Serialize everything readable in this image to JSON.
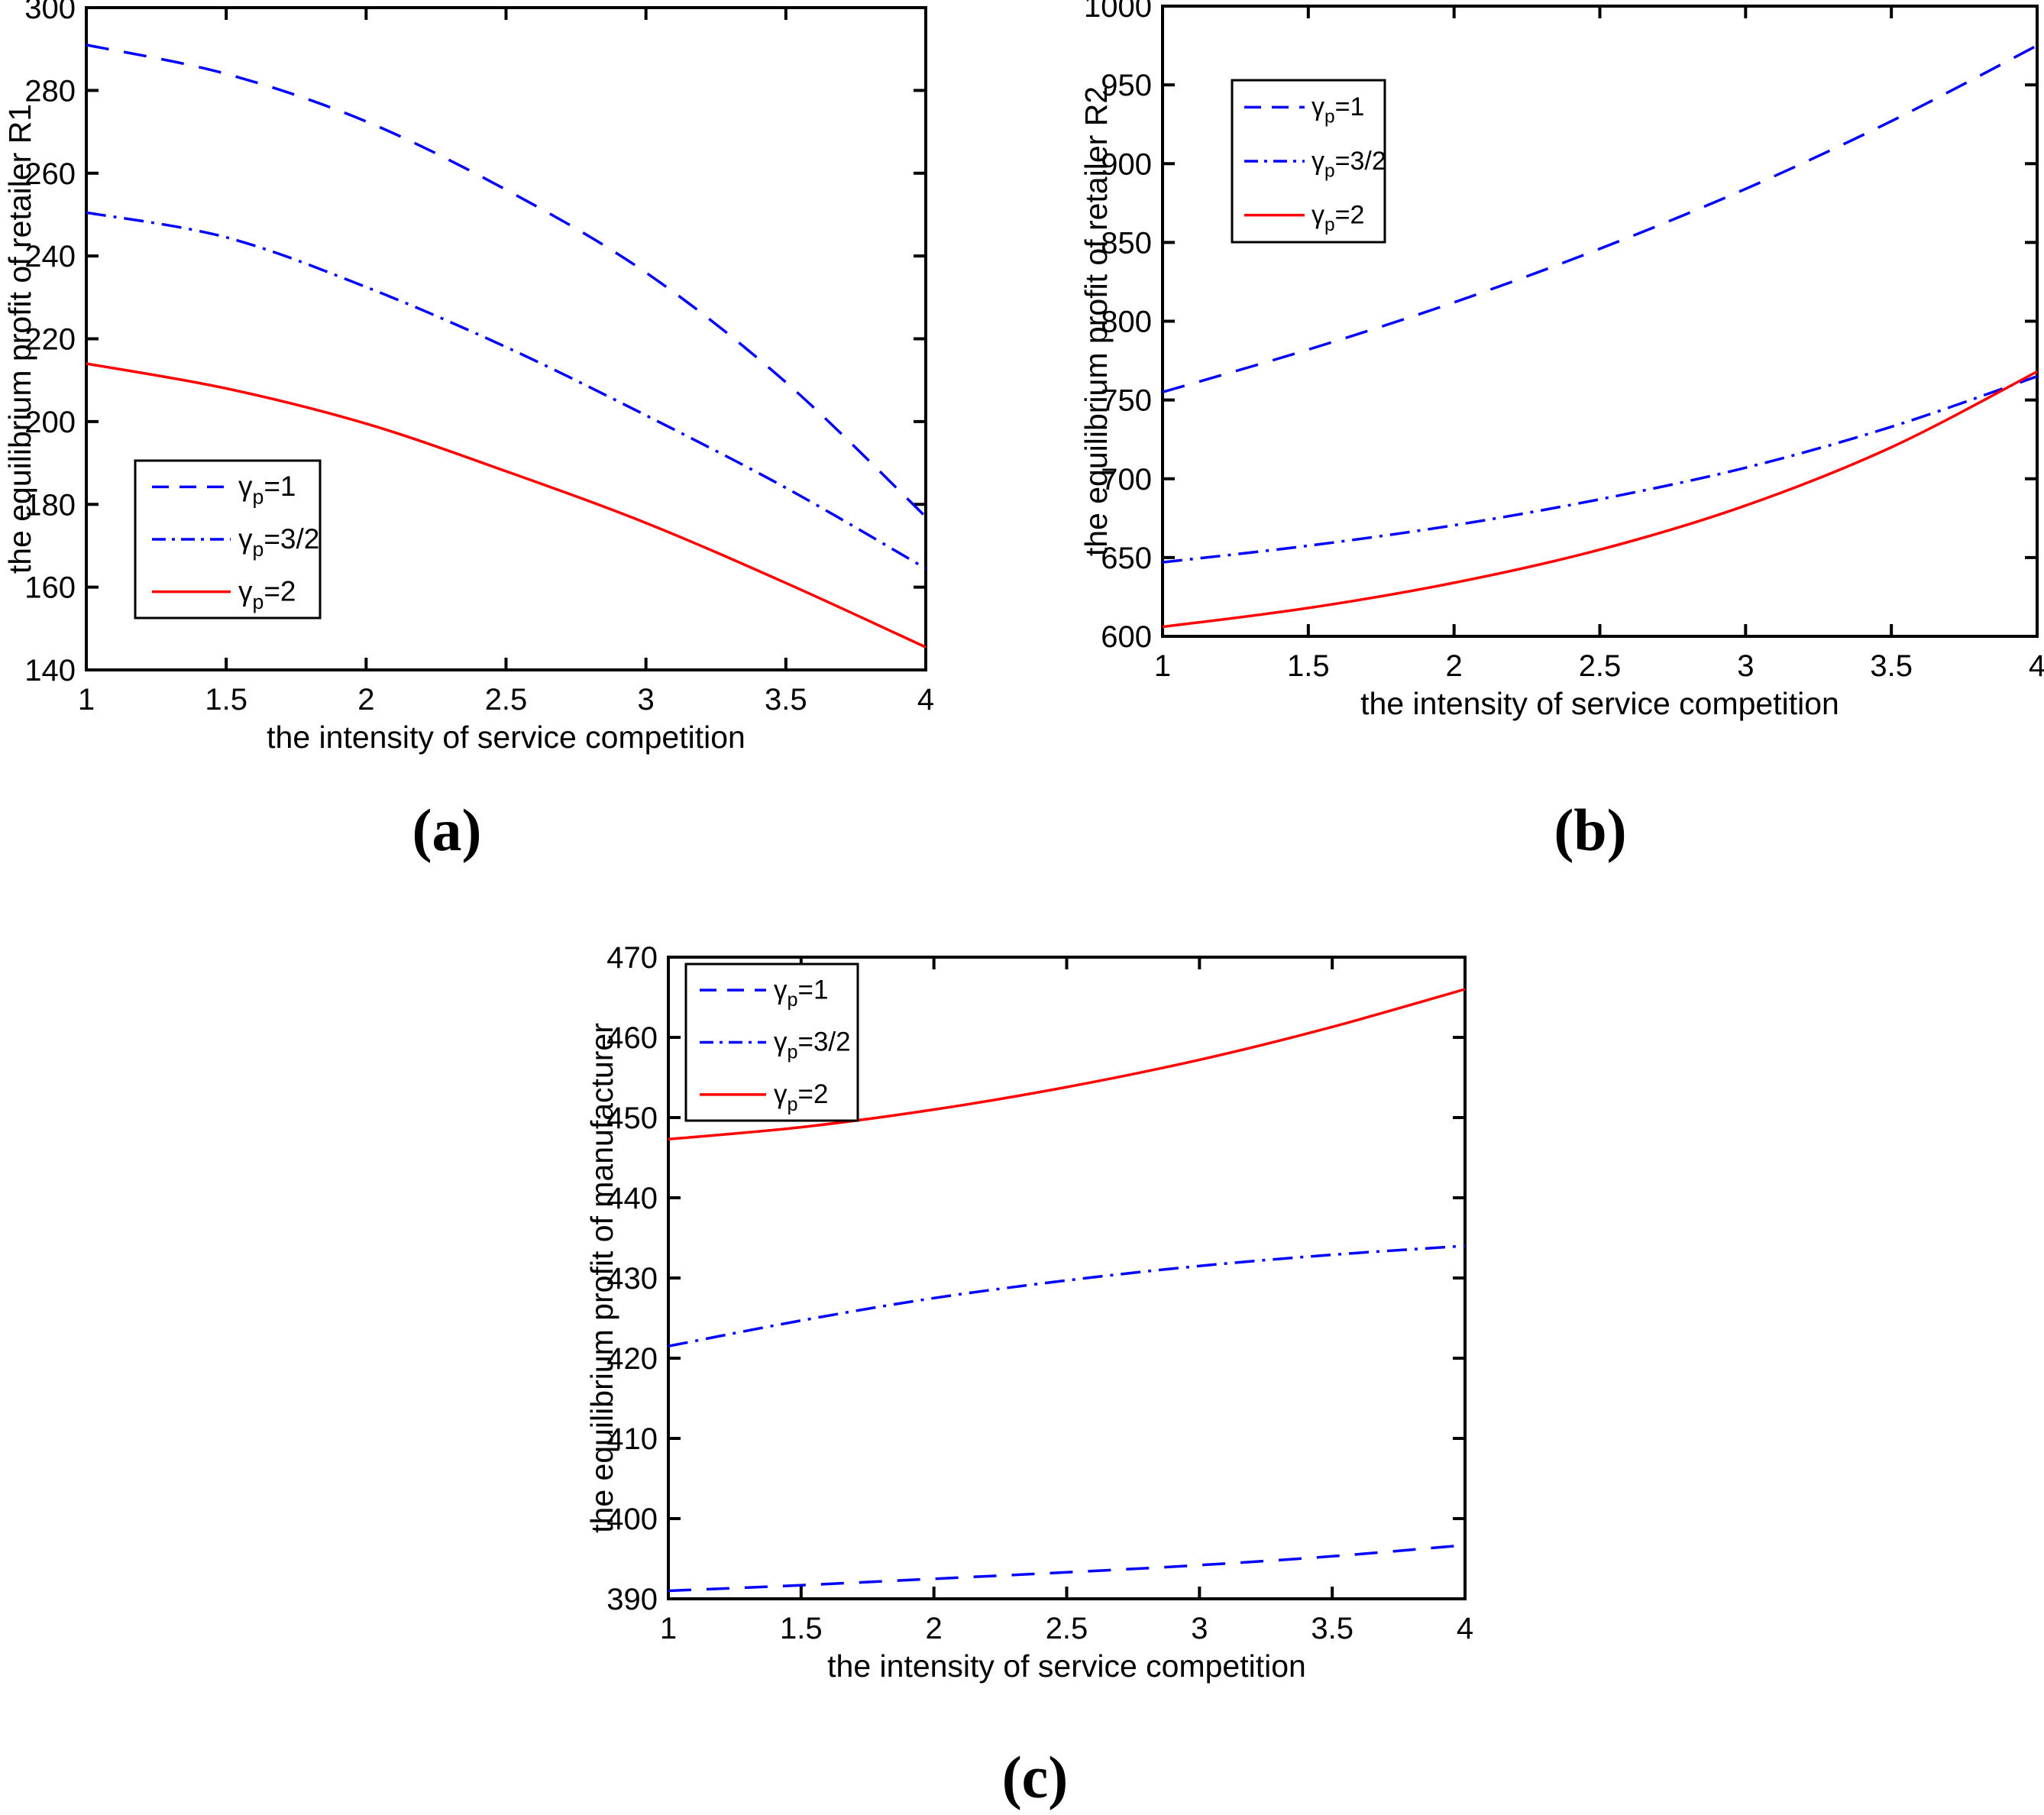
{
  "figure": {
    "background": "#ffffff",
    "accent_blue": "#0000ff",
    "accent_red": "#ff0000",
    "axis_color": "#000000"
  },
  "chart_data": [
    {
      "type": "line",
      "panel": "a",
      "caption": "(a)",
      "title": "",
      "xlabel": "the intensity of service competition",
      "ylabel": "the equilibrium profit of retailer R1",
      "xlim": [
        1,
        4
      ],
      "ylim": [
        140,
        300
      ],
      "xticks": [
        1,
        1.5,
        2,
        2.5,
        3,
        3.5,
        4
      ],
      "yticks": [
        140,
        160,
        180,
        200,
        220,
        240,
        260,
        280,
        300
      ],
      "grid": false,
      "legend_position": "lower-left-inside",
      "x": [
        1,
        1.5,
        2,
        2.5,
        3,
        3.5,
        4
      ],
      "series": [
        {
          "name": "gamma_p=1",
          "legend": {
            "base": "γ",
            "sub": "p",
            "rest": "=1"
          },
          "style": "dashed",
          "color": "#0000ff",
          "values": [
            291,
            284,
            272.5,
            256,
            236,
            209.5,
            177
          ]
        },
        {
          "name": "gamma_p=3/2",
          "legend": {
            "base": "γ",
            "sub": "p",
            "rest": "=3/2"
          },
          "style": "dashdot",
          "color": "#0000ff",
          "values": [
            250.5,
            244.5,
            232.5,
            218,
            201.5,
            184,
            164.5
          ]
        },
        {
          "name": "gamma_p=2",
          "legend": {
            "base": "γ",
            "sub": "p",
            "rest": "=2"
          },
          "style": "solid",
          "color": "#ff0000",
          "values": [
            214,
            208,
            199.5,
            188,
            175.5,
            161,
            145.5
          ]
        }
      ]
    },
    {
      "type": "line",
      "panel": "b",
      "caption": "(b)",
      "title": "",
      "xlabel": "the intensity of service competition",
      "ylabel": "the equilibrium profit of retailer R2",
      "xlim": [
        1,
        4
      ],
      "ylim": [
        600,
        1000
      ],
      "xticks": [
        1,
        1.5,
        2,
        2.5,
        3,
        3.5,
        4
      ],
      "yticks": [
        600,
        650,
        700,
        750,
        800,
        850,
        900,
        950,
        1000
      ],
      "grid": false,
      "legend_position": "upper-left-inside",
      "x": [
        1,
        1.5,
        2,
        2.5,
        3,
        3.5,
        4
      ],
      "series": [
        {
          "name": "gamma_p=1",
          "legend": {
            "base": "γ",
            "sub": "p",
            "rest": "=1"
          },
          "style": "dashed",
          "color": "#0000ff",
          "values": [
            755,
            782,
            812,
            846,
            884,
            927,
            975
          ]
        },
        {
          "name": "gamma_p=3/2",
          "legend": {
            "base": "γ",
            "sub": "p",
            "rest": "=3/2"
          },
          "style": "dashdot",
          "color": "#0000ff",
          "values": [
            647,
            657.5,
            670.5,
            687,
            707,
            733,
            765
          ]
        },
        {
          "name": "gamma_p=2",
          "legend": {
            "base": "γ",
            "sub": "p",
            "rest": "=2"
          },
          "style": "solid",
          "color": "#ff0000",
          "values": [
            606,
            618,
            634,
            655,
            683,
            720,
            768
          ]
        }
      ]
    },
    {
      "type": "line",
      "panel": "c",
      "caption": "(c)",
      "title": "",
      "xlabel": "the intensity of service competition",
      "ylabel": "the equilibrium profit of manufacturer",
      "xlim": [
        1,
        4
      ],
      "ylim": [
        390,
        470
      ],
      "xticks": [
        1,
        1.5,
        2,
        2.5,
        3,
        3.5,
        4
      ],
      "yticks": [
        390,
        400,
        410,
        420,
        430,
        440,
        450,
        460,
        470
      ],
      "grid": false,
      "legend_position": "upper-left-inside",
      "x": [
        1,
        1.5,
        2,
        2.5,
        3,
        3.5,
        4
      ],
      "series": [
        {
          "name": "gamma_p=1",
          "legend": {
            "base": "γ",
            "sub": "p",
            "rest": "=1"
          },
          "style": "dashed",
          "color": "#0000ff",
          "values": [
            391,
            391.7,
            392.5,
            393.3,
            394.2,
            395.3,
            396.7
          ]
        },
        {
          "name": "gamma_p=3/2",
          "legend": {
            "base": "γ",
            "sub": "p",
            "rest": "=3/2"
          },
          "style": "dashdot",
          "color": "#0000ff",
          "values": [
            421.5,
            424.7,
            427.5,
            429.7,
            431.5,
            432.9,
            434
          ]
        },
        {
          "name": "gamma_p=2",
          "legend": {
            "base": "γ",
            "sub": "p",
            "rest": "=2"
          },
          "style": "solid",
          "color": "#ff0000",
          "values": [
            447.3,
            448.8,
            451,
            453.8,
            457.2,
            461.3,
            466
          ]
        }
      ]
    }
  ]
}
